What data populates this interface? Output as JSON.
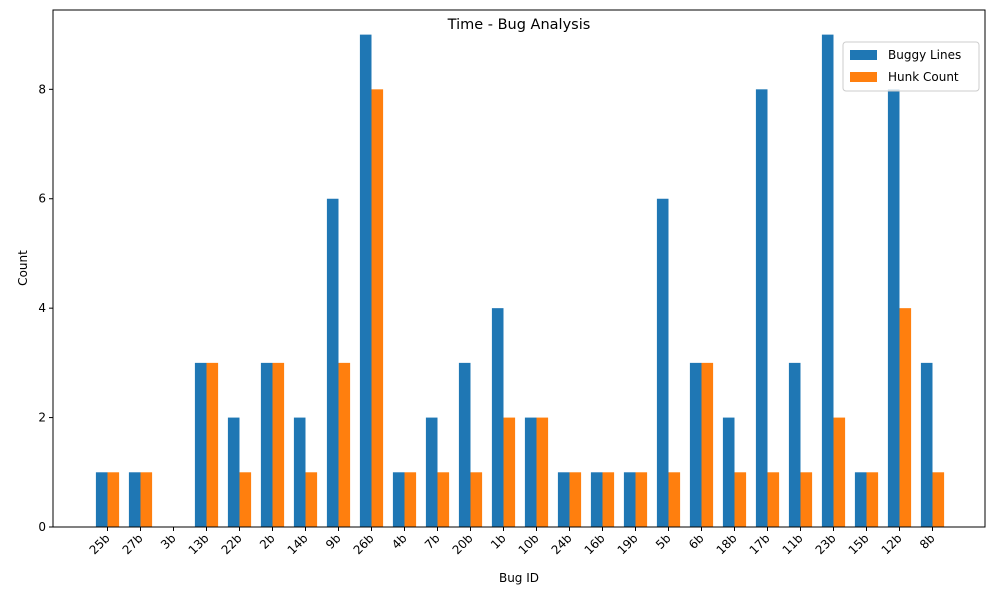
{
  "chart_data": {
    "type": "bar",
    "title": "Time - Bug Analysis",
    "xlabel": "Bug ID",
    "ylabel": "Count",
    "ylim": [
      0,
      9.45
    ],
    "yticks": [
      0,
      2,
      4,
      6,
      8
    ],
    "legend_position": "top-right",
    "grid": false,
    "categories": [
      "25b",
      "27b",
      "3b",
      "13b",
      "22b",
      "2b",
      "14b",
      "9b",
      "26b",
      "4b",
      "7b",
      "20b",
      "1b",
      "10b",
      "24b",
      "16b",
      "19b",
      "5b",
      "6b",
      "18b",
      "17b",
      "11b",
      "23b",
      "15b",
      "12b",
      "8b"
    ],
    "series": [
      {
        "name": "Buggy Lines",
        "color": "#1f77b4",
        "values": [
          1,
          1,
          0,
          3,
          2,
          3,
          2,
          6,
          9,
          1,
          2,
          3,
          4,
          2,
          1,
          1,
          1,
          6,
          3,
          2,
          8,
          3,
          9,
          1,
          8,
          3
        ]
      },
      {
        "name": "Hunk Count",
        "color": "#ff7f0e",
        "values": [
          1,
          1,
          0,
          3,
          1,
          3,
          1,
          3,
          8,
          1,
          1,
          1,
          2,
          2,
          1,
          1,
          1,
          1,
          3,
          1,
          1,
          1,
          2,
          1,
          4,
          1
        ]
      }
    ]
  }
}
